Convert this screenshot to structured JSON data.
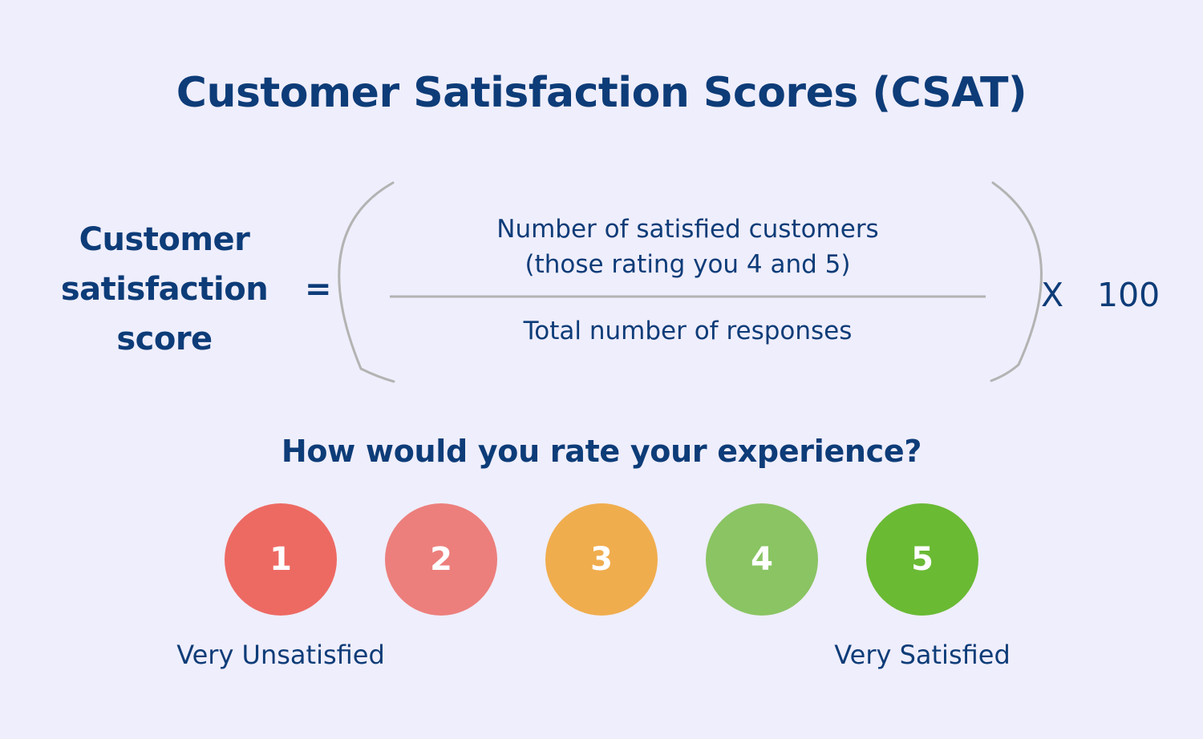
{
  "title": "Customer Satisfaction Scores (CSAT)",
  "formula": {
    "lhs_lines": [
      "Customer",
      "satisfaction",
      "score"
    ],
    "equals": "=",
    "numerator_lines": [
      "Number of satisfied customers",
      "(those rating you 4 and 5)"
    ],
    "denominator": "Total number of responses",
    "multiply_symbol": "X",
    "multiplier": "100"
  },
  "question": "How would you rate your experience?",
  "rating_scale": {
    "options": [
      {
        "label": "1",
        "color": "#ed6a63"
      },
      {
        "label": "2",
        "color": "#ec7f7c"
      },
      {
        "label": "3",
        "color": "#f0ad4e"
      },
      {
        "label": "4",
        "color": "#8ac463"
      },
      {
        "label": "5",
        "color": "#6aba34"
      }
    ],
    "low_label": "Very Unsatisfied",
    "high_label": "Very Satisfied"
  },
  "colors": {
    "background": "#efeefc",
    "text": "#0d3c78",
    "paren": "#b3b3b3"
  }
}
